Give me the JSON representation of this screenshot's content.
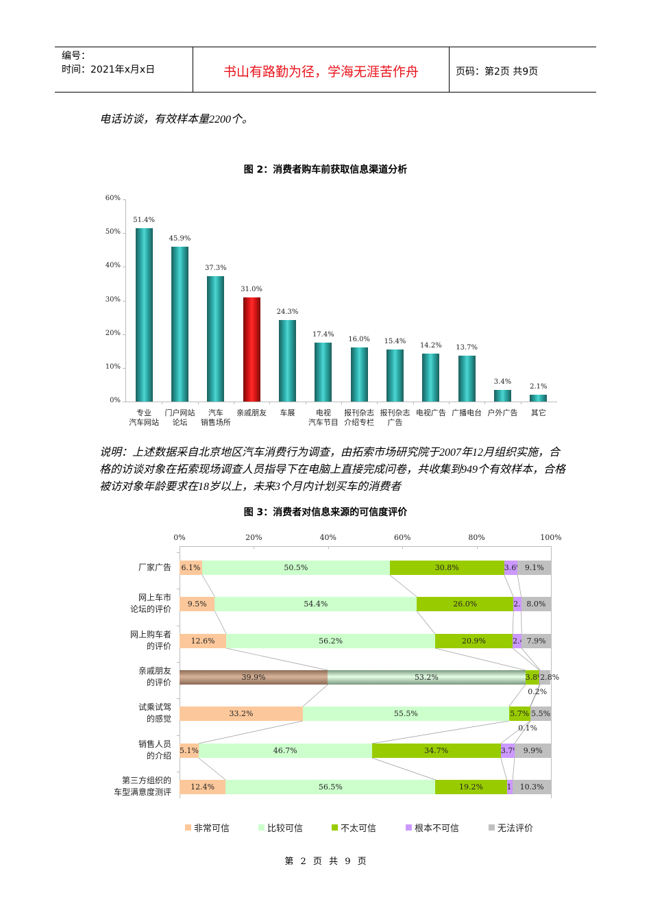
{
  "header": {
    "code_label": "编号：",
    "date_label": "时间：2021年x月x日",
    "motto": "书山有路勤为径，学海无涯苦作舟",
    "page_info": "页码：第2页  共9页"
  },
  "intro_text": "电话访谈，有效样本量2200个。",
  "figure2": {
    "title": "图 2：消费者购车前获取信息渠道分析"
  },
  "note_text": "说明：上述数据采自北京地区汽车消费行为调查，由拓索市场研究院于2007年12月组织实施，合格的访谈对象在拓索现场调查人员指导下在电脑上直接完成问卷，共收集到949个有效样本，合格被访对象年龄要求在18岁以上，未来3个月内计划买车的消费者",
  "figure3": {
    "title": "图 3：消费者对信息来源的可信度评价"
  },
  "footer": {
    "page_text": "第 2 页 共 9 页"
  },
  "chart_data": [
    {
      "type": "bar",
      "title": "图 2：消费者购车前获取信息渠道分析",
      "categories": [
        "专业\n汽车网站",
        "门户网站\n论坛",
        "汽车\n销售场所",
        "亲戚朋友",
        "车展",
        "电视\n汽车节目",
        "报刊杂志\n介绍专栏",
        "报刊杂志\n广告",
        "电视广告",
        "广播电台",
        "户外广告",
        "其它"
      ],
      "values": [
        51.4,
        45.9,
        37.3,
        31.0,
        24.3,
        17.4,
        16.0,
        15.4,
        14.2,
        13.7,
        3.4,
        2.1
      ],
      "value_labels": [
        "51.4%",
        "45.9%",
        "37.3%",
        "31.0%",
        "24.3%",
        "17.4%",
        "16.0%",
        "15.4%",
        "14.2%",
        "13.7%",
        "3.4%",
        "2.1%"
      ],
      "highlight_index": 3,
      "colors": {
        "default": "#2aa7a4",
        "highlight": "#e8121a"
      },
      "xlabel": "",
      "ylabel": "",
      "ylim": [
        0,
        60
      ],
      "yticks": [
        "0%",
        "10%",
        "20%",
        "30%",
        "40%",
        "50%",
        "60%"
      ],
      "grid": false
    },
    {
      "type": "bar",
      "orientation": "horizontal",
      "stacked": "percent",
      "title": "图 3：消费者对信息来源的可信度评价",
      "categories": [
        "厂家广告",
        "网上车市\n论坛的评价",
        "网上购车者\n的评价",
        "亲戚朋友\n的评价",
        "试乘试驾\n的感觉",
        "销售人员\n的介绍",
        "第三方组织的\n车型满意度测评"
      ],
      "series": [
        {
          "name": "非常可信",
          "color": "#fcc89b",
          "values": [
            6.1,
            9.5,
            12.6,
            39.9,
            33.2,
            5.1,
            12.4
          ]
        },
        {
          "name": "比较可信",
          "color": "#ccffcc",
          "values": [
            50.5,
            54.4,
            56.2,
            53.2,
            55.5,
            46.7,
            56.5
          ]
        },
        {
          "name": "不太可信",
          "color": "#99cc00",
          "values": [
            30.8,
            26.0,
            20.9,
            3.8,
            5.7,
            34.7,
            19.2
          ]
        },
        {
          "name": "根本不可信",
          "color": "#cc99ff",
          "values": [
            3.6,
            2.1,
            2.4,
            0.2,
            0.1,
            3.7,
            1.6
          ]
        },
        {
          "name": "无法评价",
          "color": "#c0c0c0",
          "values": [
            9.1,
            8.0,
            7.9,
            2.8,
            5.5,
            9.9,
            10.3
          ]
        }
      ],
      "xticks": [
        "0%",
        "20%",
        "40%",
        "60%",
        "80%",
        "100%"
      ],
      "xlim": [
        0,
        100
      ],
      "legend_position": "bottom",
      "series_lines": true
    }
  ]
}
